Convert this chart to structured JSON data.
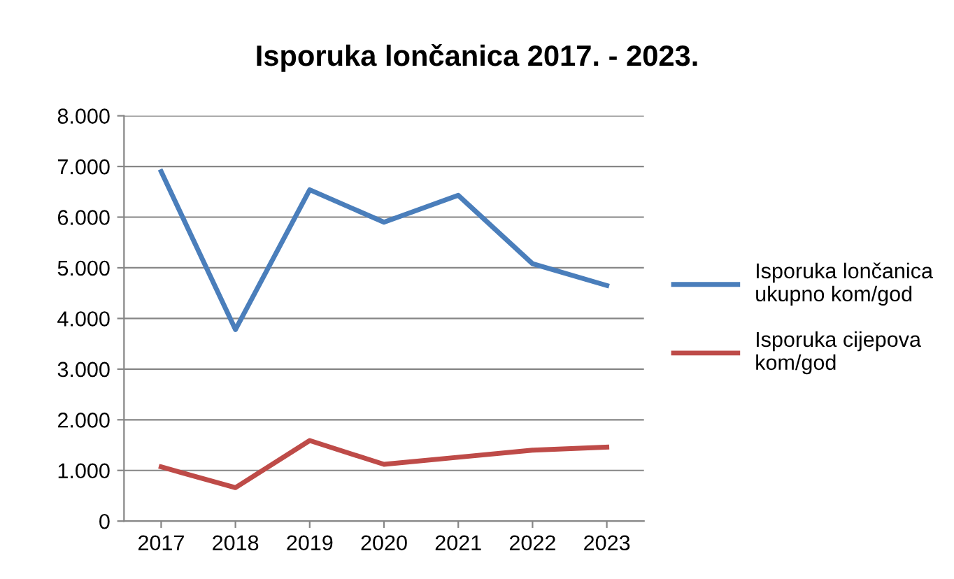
{
  "chart_data": {
    "type": "line",
    "title": "Isporuka lončanica 2017. - 2023.",
    "categories": [
      "2017",
      "2018",
      "2019",
      "2020",
      "2021",
      "2022",
      "2023"
    ],
    "series": [
      {
        "name": "Isporuka lončanica\nukupno kom/god",
        "color": "#4a7ebb",
        "values": [
          6900,
          3780,
          6540,
          5900,
          6430,
          5080,
          4650
        ]
      },
      {
        "name": "Isporuka cijepova\nkom/god",
        "color": "#be4b48",
        "values": [
          1070,
          660,
          1590,
          1120,
          1260,
          1400,
          1460
        ]
      }
    ],
    "ylim": [
      0,
      8000
    ],
    "yticks": [
      {
        "value": 0,
        "label": "0"
      },
      {
        "value": 1000,
        "label": "1.000"
      },
      {
        "value": 2000,
        "label": "2.000"
      },
      {
        "value": 3000,
        "label": "3.000"
      },
      {
        "value": 4000,
        "label": "4.000"
      },
      {
        "value": 5000,
        "label": "5.000"
      },
      {
        "value": 6000,
        "label": "6.000"
      },
      {
        "value": 7000,
        "label": "7.000"
      },
      {
        "value": 8000,
        "label": "8.000"
      }
    ],
    "grid": "y",
    "legend": "right",
    "marker": "none",
    "line_style": "solid"
  }
}
